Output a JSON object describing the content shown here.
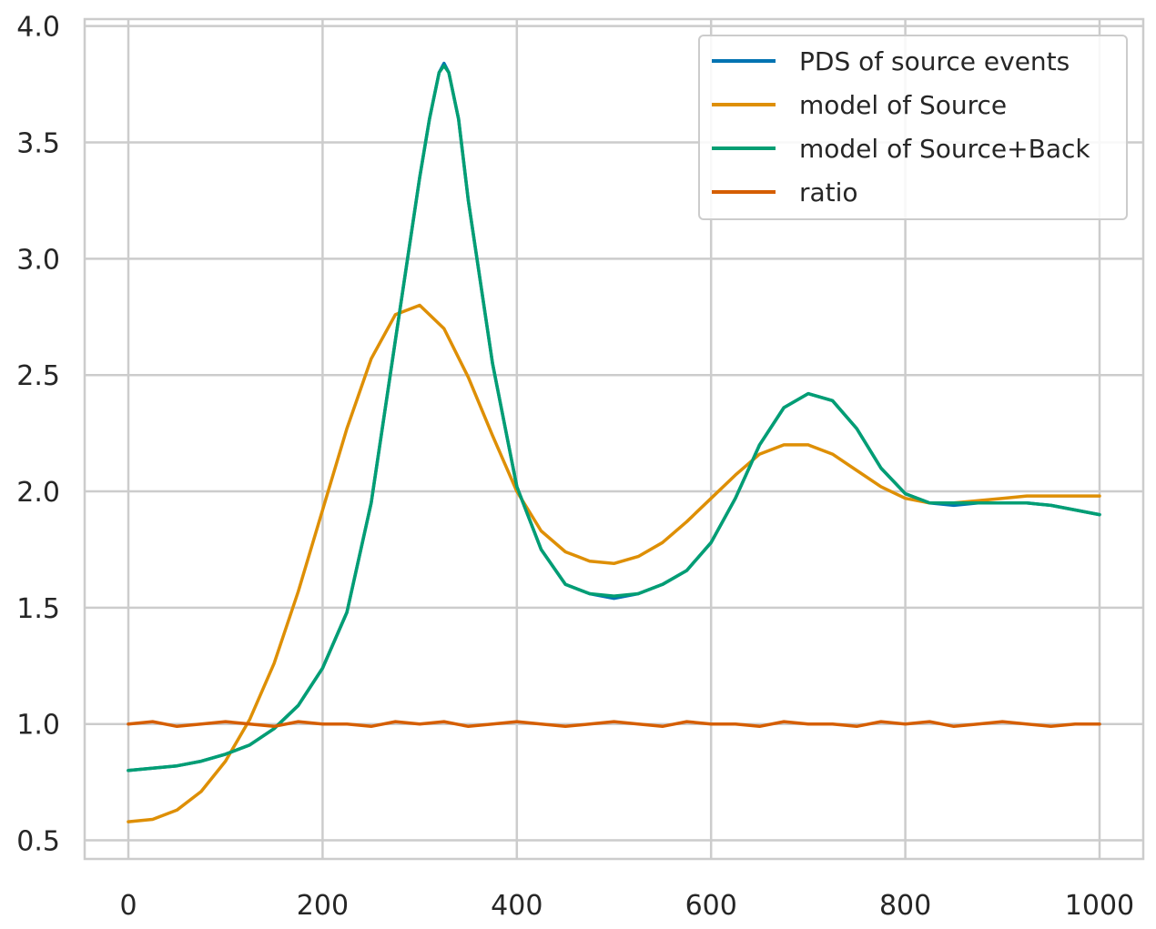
{
  "chart_data": {
    "type": "line",
    "title": "",
    "xlabel": "",
    "ylabel": "",
    "xlim": [
      -45,
      1045
    ],
    "ylim": [
      0.42,
      4.03
    ],
    "grid": true,
    "legend_position": "top-right",
    "x_ticks": [
      {
        "value": 0,
        "label": "0"
      },
      {
        "value": 200,
        "label": "200"
      },
      {
        "value": 400,
        "label": "400"
      },
      {
        "value": 600,
        "label": "600"
      },
      {
        "value": 800,
        "label": "800"
      },
      {
        "value": 1000,
        "label": "1000"
      }
    ],
    "y_ticks": [
      {
        "value": 0.5,
        "label": "0.5"
      },
      {
        "value": 1.0,
        "label": "1.0"
      },
      {
        "value": 1.5,
        "label": "1.5"
      },
      {
        "value": 2.0,
        "label": "2.0"
      },
      {
        "value": 2.5,
        "label": "2.5"
      },
      {
        "value": 3.0,
        "label": "3.0"
      },
      {
        "value": 3.5,
        "label": "3.5"
      },
      {
        "value": 4.0,
        "label": "4.0"
      }
    ],
    "series": [
      {
        "name": "PDS of source events",
        "color": "#0173b2",
        "x": [
          0,
          25,
          50,
          75,
          100,
          125,
          150,
          175,
          200,
          225,
          250,
          275,
          300,
          310,
          320,
          325,
          330,
          340,
          350,
          375,
          400,
          425,
          450,
          475,
          500,
          525,
          550,
          575,
          600,
          625,
          650,
          675,
          700,
          725,
          750,
          775,
          800,
          825,
          850,
          875,
          900,
          925,
          950,
          975,
          1000
        ],
        "y": [
          0.8,
          0.81,
          0.82,
          0.84,
          0.87,
          0.91,
          0.98,
          1.08,
          1.24,
          1.48,
          1.95,
          2.65,
          3.35,
          3.6,
          3.8,
          3.84,
          3.8,
          3.6,
          3.25,
          2.55,
          2.02,
          1.75,
          1.6,
          1.56,
          1.54,
          1.56,
          1.6,
          1.66,
          1.78,
          1.97,
          2.2,
          2.36,
          2.42,
          2.39,
          2.27,
          2.1,
          1.99,
          1.95,
          1.94,
          1.95,
          1.95,
          1.95,
          1.94,
          1.92,
          1.9
        ]
      },
      {
        "name": "model of Source",
        "color": "#de8f05",
        "x": [
          0,
          25,
          50,
          75,
          100,
          125,
          150,
          175,
          200,
          225,
          250,
          275,
          300,
          325,
          350,
          375,
          400,
          425,
          450,
          475,
          500,
          525,
          550,
          575,
          600,
          625,
          650,
          675,
          700,
          725,
          750,
          775,
          800,
          825,
          850,
          875,
          900,
          925,
          950,
          975,
          1000
        ],
        "y": [
          0.58,
          0.59,
          0.63,
          0.71,
          0.84,
          1.02,
          1.26,
          1.57,
          1.92,
          2.27,
          2.57,
          2.76,
          2.8,
          2.7,
          2.49,
          2.24,
          2.0,
          1.83,
          1.74,
          1.7,
          1.69,
          1.72,
          1.78,
          1.87,
          1.97,
          2.07,
          2.16,
          2.2,
          2.2,
          2.16,
          2.09,
          2.02,
          1.97,
          1.95,
          1.95,
          1.96,
          1.97,
          1.98,
          1.98,
          1.98,
          1.98
        ]
      },
      {
        "name": "model of Source+Back",
        "color": "#029e73",
        "x": [
          0,
          25,
          50,
          75,
          100,
          125,
          150,
          175,
          200,
          225,
          250,
          275,
          300,
          310,
          320,
          325,
          330,
          340,
          350,
          375,
          400,
          425,
          450,
          475,
          500,
          525,
          550,
          575,
          600,
          625,
          650,
          675,
          700,
          725,
          750,
          775,
          800,
          825,
          850,
          875,
          900,
          925,
          950,
          975,
          1000
        ],
        "y": [
          0.8,
          0.81,
          0.82,
          0.84,
          0.87,
          0.91,
          0.98,
          1.08,
          1.24,
          1.48,
          1.95,
          2.65,
          3.35,
          3.6,
          3.8,
          3.83,
          3.8,
          3.6,
          3.25,
          2.55,
          2.02,
          1.75,
          1.6,
          1.56,
          1.55,
          1.56,
          1.6,
          1.66,
          1.78,
          1.97,
          2.2,
          2.36,
          2.42,
          2.39,
          2.27,
          2.1,
          1.99,
          1.95,
          1.95,
          1.95,
          1.95,
          1.95,
          1.94,
          1.92,
          1.9
        ]
      },
      {
        "name": "ratio",
        "color": "#d55e00",
        "x": [
          0,
          25,
          50,
          75,
          100,
          125,
          150,
          175,
          200,
          225,
          250,
          275,
          300,
          325,
          350,
          375,
          400,
          425,
          450,
          475,
          500,
          525,
          550,
          575,
          600,
          625,
          650,
          675,
          700,
          725,
          750,
          775,
          800,
          825,
          850,
          875,
          900,
          925,
          950,
          975,
          1000
        ],
        "y": [
          1.0,
          1.01,
          0.99,
          1.0,
          1.01,
          1.0,
          0.99,
          1.01,
          1.0,
          1.0,
          0.99,
          1.01,
          1.0,
          1.01,
          0.99,
          1.0,
          1.01,
          1.0,
          0.99,
          1.0,
          1.01,
          1.0,
          0.99,
          1.01,
          1.0,
          1.0,
          0.99,
          1.01,
          1.0,
          1.0,
          0.99,
          1.01,
          1.0,
          1.01,
          0.99,
          1.0,
          1.01,
          1.0,
          0.99,
          1.0,
          1.0
        ]
      }
    ]
  }
}
